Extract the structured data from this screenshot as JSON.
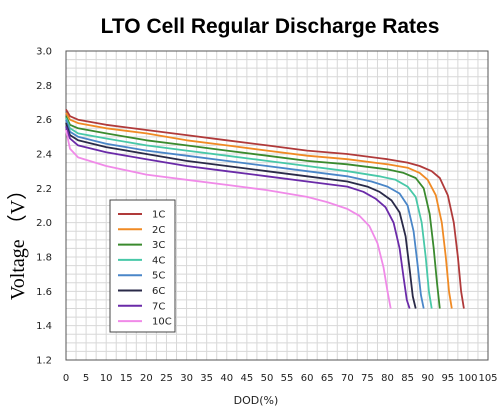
{
  "chart_data": {
    "type": "line",
    "title": "LTO Cell Regular Discharge Rates",
    "xlabel": "DOD(%)",
    "ylabel": "Voltage （V）",
    "xlim": [
      0,
      105
    ],
    "ylim": [
      1.2,
      3.0
    ],
    "xticks": [
      0,
      5,
      10,
      15,
      20,
      25,
      30,
      35,
      40,
      45,
      50,
      55,
      60,
      65,
      70,
      75,
      80,
      85,
      90,
      95,
      100,
      105
    ],
    "yticks": [
      1.2,
      1.4,
      1.6,
      1.8,
      2.0,
      2.2,
      2.4,
      2.6,
      2.8,
      3.0
    ],
    "grid": true,
    "legend_position": "lower-left",
    "series": [
      {
        "name": "1C",
        "color": "#b03a3a",
        "x": [
          0,
          1,
          3,
          10,
          20,
          30,
          40,
          50,
          60,
          70,
          80,
          85,
          88,
          91,
          93,
          95,
          96.5,
          97.5,
          98.3,
          99
        ],
        "y": [
          2.66,
          2.62,
          2.6,
          2.57,
          2.54,
          2.51,
          2.48,
          2.45,
          2.42,
          2.4,
          2.37,
          2.35,
          2.33,
          2.3,
          2.26,
          2.16,
          2.0,
          1.8,
          1.6,
          1.5
        ]
      },
      {
        "name": "2C",
        "color": "#f08a24",
        "x": [
          0,
          1,
          3,
          10,
          20,
          30,
          40,
          50,
          60,
          70,
          80,
          85,
          88,
          90,
          92,
          93.5,
          94.5,
          95.3,
          96
        ],
        "y": [
          2.64,
          2.6,
          2.58,
          2.55,
          2.52,
          2.48,
          2.45,
          2.42,
          2.39,
          2.37,
          2.34,
          2.32,
          2.29,
          2.25,
          2.16,
          2.0,
          1.8,
          1.6,
          1.5
        ]
      },
      {
        "name": "3C",
        "color": "#3a8a2e",
        "x": [
          0,
          1,
          3,
          10,
          20,
          30,
          40,
          50,
          60,
          70,
          80,
          84,
          87,
          89,
          90.5,
          91.5,
          92.3,
          93
        ],
        "y": [
          2.62,
          2.57,
          2.55,
          2.52,
          2.48,
          2.45,
          2.42,
          2.39,
          2.36,
          2.34,
          2.31,
          2.29,
          2.26,
          2.2,
          2.05,
          1.85,
          1.65,
          1.5
        ]
      },
      {
        "name": "4C",
        "color": "#48c8a8",
        "x": [
          0,
          1,
          3,
          10,
          20,
          30,
          40,
          50,
          60,
          70,
          78,
          82,
          85,
          87,
          88.5,
          89.5,
          90.3,
          91
        ],
        "y": [
          2.61,
          2.55,
          2.52,
          2.49,
          2.45,
          2.42,
          2.39,
          2.36,
          2.33,
          2.3,
          2.27,
          2.25,
          2.21,
          2.15,
          2.0,
          1.8,
          1.6,
          1.5
        ]
      },
      {
        "name": "5C",
        "color": "#4a86c8",
        "x": [
          0,
          1,
          3,
          10,
          20,
          30,
          40,
          50,
          60,
          70,
          76,
          80,
          83,
          85,
          86.5,
          87.5,
          88.3,
          89
        ],
        "y": [
          2.6,
          2.53,
          2.5,
          2.46,
          2.42,
          2.39,
          2.36,
          2.33,
          2.3,
          2.27,
          2.24,
          2.21,
          2.17,
          2.1,
          1.95,
          1.75,
          1.58,
          1.5
        ]
      },
      {
        "name": "6C",
        "color": "#2a2a48",
        "x": [
          0,
          1,
          3,
          10,
          20,
          30,
          40,
          50,
          60,
          70,
          75,
          78,
          81,
          83,
          84.5,
          85.5,
          86.3,
          87
        ],
        "y": [
          2.58,
          2.51,
          2.48,
          2.44,
          2.4,
          2.36,
          2.33,
          2.3,
          2.27,
          2.24,
          2.21,
          2.18,
          2.13,
          2.06,
          1.92,
          1.73,
          1.57,
          1.5
        ]
      },
      {
        "name": "7C",
        "color": "#6a2aa8",
        "x": [
          0,
          1,
          3,
          10,
          20,
          30,
          40,
          50,
          60,
          70,
          74,
          77,
          79.5,
          81.5,
          83,
          84,
          84.8,
          85.5
        ],
        "y": [
          2.56,
          2.49,
          2.45,
          2.41,
          2.37,
          2.33,
          2.3,
          2.27,
          2.24,
          2.21,
          2.18,
          2.14,
          2.09,
          2.0,
          1.85,
          1.68,
          1.55,
          1.5
        ]
      },
      {
        "name": "10C",
        "color": "#f08ae8",
        "x": [
          0,
          1,
          3,
          10,
          20,
          30,
          40,
          50,
          60,
          65,
          70,
          73,
          75.5,
          77.5,
          79,
          80,
          80.8
        ],
        "y": [
          2.54,
          2.43,
          2.38,
          2.33,
          2.28,
          2.25,
          2.22,
          2.19,
          2.15,
          2.12,
          2.08,
          2.04,
          1.98,
          1.88,
          1.74,
          1.6,
          1.5
        ]
      }
    ]
  }
}
